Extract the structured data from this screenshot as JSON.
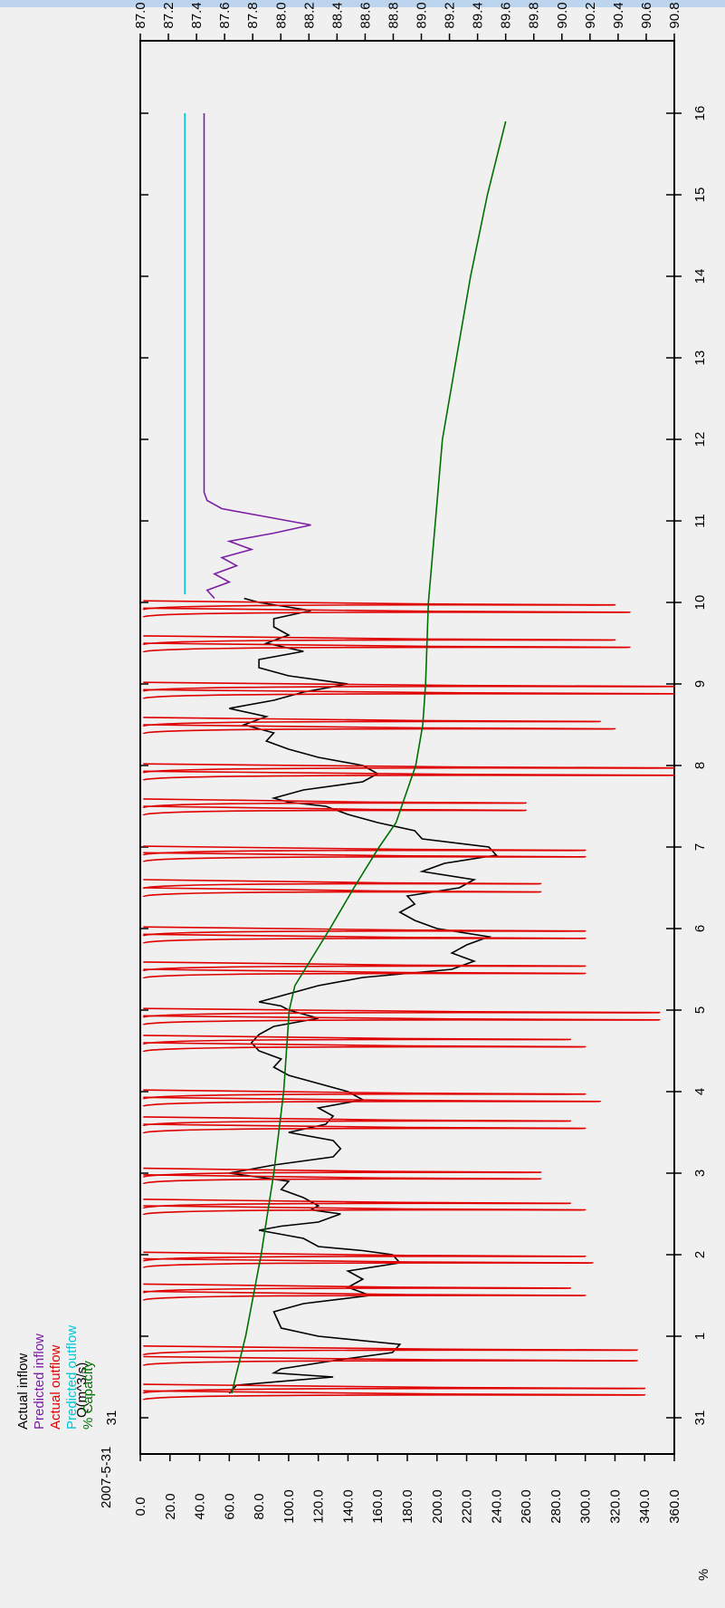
{
  "chart_data": {
    "type": "line",
    "title": "",
    "date_label": "2007-5-31",
    "left_axis": {
      "label": "Q(m^3/s)",
      "min": 0,
      "max": 360,
      "ticks": [
        "0.0",
        "20.0",
        "40.0",
        "60.0",
        "80.0",
        "100.0",
        "120.0",
        "140.0",
        "160.0",
        "180.0",
        "200.0",
        "220.0",
        "240.0",
        "260.0",
        "280.0",
        "300.0",
        "320.0",
        "340.0",
        "360.0"
      ]
    },
    "right_axis": {
      "label": "%",
      "min": 87.0,
      "max": 90.8,
      "ticks": [
        "87.0",
        "87.2",
        "87.4",
        "87.6",
        "87.8",
        "88.0",
        "88.2",
        "88.4",
        "88.6",
        "88.8",
        "89.0",
        "89.2",
        "89.4",
        "89.6",
        "89.8",
        "90.0",
        "90.2",
        "90.4",
        "90.6",
        "90.8"
      ]
    },
    "x_axis": {
      "min": 0,
      "max": 17,
      "tick_values": [
        0,
        1,
        2,
        3,
        4,
        5,
        6,
        7,
        8,
        9,
        10,
        11,
        12,
        13,
        14,
        15,
        16
      ],
      "tick_labels": [
        "31",
        "1",
        "2",
        "3",
        "4",
        "5",
        "6",
        "7",
        "8",
        "9",
        "10",
        "11",
        "12",
        "13",
        "14",
        "15",
        "16"
      ]
    },
    "legend_placement": "top-left",
    "series": [
      {
        "name": "Actual inflow",
        "color": "#000000",
        "axis": "left",
        "points": [
          [
            0.3,
            60
          ],
          [
            0.4,
            65
          ],
          [
            0.5,
            130
          ],
          [
            0.55,
            90
          ],
          [
            0.6,
            95
          ],
          [
            0.7,
            130
          ],
          [
            0.8,
            170
          ],
          [
            0.9,
            175
          ],
          [
            1.0,
            120
          ],
          [
            1.1,
            95
          ],
          [
            1.3,
            90
          ],
          [
            1.4,
            110
          ],
          [
            1.5,
            155
          ],
          [
            1.6,
            140
          ],
          [
            1.7,
            150
          ],
          [
            1.8,
            140
          ],
          [
            1.9,
            175
          ],
          [
            2.0,
            170
          ],
          [
            2.05,
            150
          ],
          [
            2.1,
            120
          ],
          [
            2.2,
            110
          ],
          [
            2.25,
            95
          ],
          [
            2.3,
            80
          ],
          [
            2.35,
            95
          ],
          [
            2.4,
            120
          ],
          [
            2.5,
            135
          ],
          [
            2.55,
            115
          ],
          [
            2.6,
            120
          ],
          [
            2.7,
            110
          ],
          [
            2.8,
            95
          ],
          [
            2.9,
            100
          ],
          [
            3.0,
            60
          ],
          [
            3.05,
            75
          ],
          [
            3.1,
            90
          ],
          [
            3.2,
            130
          ],
          [
            3.3,
            135
          ],
          [
            3.4,
            130
          ],
          [
            3.5,
            100
          ],
          [
            3.6,
            125
          ],
          [
            3.7,
            130
          ],
          [
            3.8,
            120
          ],
          [
            3.9,
            150
          ],
          [
            4.0,
            140
          ],
          [
            4.1,
            120
          ],
          [
            4.2,
            100
          ],
          [
            4.3,
            90
          ],
          [
            4.4,
            95
          ],
          [
            4.5,
            80
          ],
          [
            4.6,
            75
          ],
          [
            4.7,
            80
          ],
          [
            4.8,
            90
          ],
          [
            4.9,
            120
          ],
          [
            5.0,
            100
          ],
          [
            5.05,
            95
          ],
          [
            5.1,
            80
          ],
          [
            5.2,
            100
          ],
          [
            5.3,
            120
          ],
          [
            5.4,
            150
          ],
          [
            5.5,
            210
          ],
          [
            5.6,
            225
          ],
          [
            5.7,
            210
          ],
          [
            5.8,
            220
          ],
          [
            5.9,
            235
          ],
          [
            6.0,
            200
          ],
          [
            6.1,
            185
          ],
          [
            6.2,
            175
          ],
          [
            6.3,
            185
          ],
          [
            6.4,
            180
          ],
          [
            6.5,
            215
          ],
          [
            6.6,
            225
          ],
          [
            6.7,
            190
          ],
          [
            6.8,
            205
          ],
          [
            6.9,
            240
          ],
          [
            7.0,
            235
          ],
          [
            7.1,
            190
          ],
          [
            7.2,
            185
          ],
          [
            7.3,
            160
          ],
          [
            7.4,
            140
          ],
          [
            7.5,
            125
          ],
          [
            7.55,
            100
          ],
          [
            7.6,
            90
          ],
          [
            7.7,
            110
          ],
          [
            7.8,
            150
          ],
          [
            7.9,
            160
          ],
          [
            8.0,
            150
          ],
          [
            8.1,
            120
          ],
          [
            8.2,
            100
          ],
          [
            8.3,
            85
          ],
          [
            8.4,
            90
          ],
          [
            8.5,
            70
          ],
          [
            8.6,
            85
          ],
          [
            8.7,
            60
          ],
          [
            8.8,
            90
          ],
          [
            8.9,
            110
          ],
          [
            9.0,
            140
          ],
          [
            9.1,
            100
          ],
          [
            9.2,
            80
          ],
          [
            9.3,
            80
          ],
          [
            9.4,
            110
          ],
          [
            9.5,
            85
          ],
          [
            9.6,
            100
          ],
          [
            9.7,
            90
          ],
          [
            9.8,
            90
          ],
          [
            9.9,
            115
          ],
          [
            10.0,
            80
          ],
          [
            10.05,
            70
          ]
        ]
      },
      {
        "name": "Predicted inflow",
        "color": "#7b1fa2",
        "axis": "left",
        "points": [
          [
            10.05,
            50
          ],
          [
            10.15,
            45
          ],
          [
            10.25,
            60
          ],
          [
            10.35,
            50
          ],
          [
            10.45,
            65
          ],
          [
            10.55,
            55
          ],
          [
            10.65,
            75
          ],
          [
            10.75,
            60
          ],
          [
            10.85,
            90
          ],
          [
            10.95,
            115
          ],
          [
            11.05,
            85
          ],
          [
            11.15,
            55
          ],
          [
            11.25,
            45
          ],
          [
            11.35,
            43
          ],
          [
            16.0,
            43
          ]
        ]
      },
      {
        "name": "Actual outflow",
        "color": "#e00000",
        "axis": "left",
        "spikes": [
          [
            0.28,
            340
          ],
          [
            0.36,
            340
          ],
          [
            0.7,
            335
          ],
          [
            0.83,
            335
          ],
          [
            1.5,
            300
          ],
          [
            1.59,
            290
          ],
          [
            1.9,
            305
          ],
          [
            1.98,
            300
          ],
          [
            2.55,
            300
          ],
          [
            2.63,
            290
          ],
          [
            2.93,
            270
          ],
          [
            3.01,
            270
          ],
          [
            3.55,
            300
          ],
          [
            3.64,
            290
          ],
          [
            3.88,
            310
          ],
          [
            3.97,
            300
          ],
          [
            4.55,
            300
          ],
          [
            4.64,
            290
          ],
          [
            4.88,
            350
          ],
          [
            4.97,
            350
          ],
          [
            5.45,
            300
          ],
          [
            5.54,
            300
          ],
          [
            5.88,
            300
          ],
          [
            5.97,
            300
          ],
          [
            6.45,
            270
          ],
          [
            6.55,
            270
          ],
          [
            6.88,
            300
          ],
          [
            6.96,
            300
          ],
          [
            7.45,
            260
          ],
          [
            7.54,
            260
          ],
          [
            7.88,
            360
          ],
          [
            7.97,
            360
          ],
          [
            8.45,
            320
          ],
          [
            8.54,
            310
          ],
          [
            8.88,
            360
          ],
          [
            8.97,
            360
          ],
          [
            9.45,
            330
          ],
          [
            9.54,
            320
          ],
          [
            9.88,
            330
          ],
          [
            9.97,
            320
          ]
        ]
      },
      {
        "name": "Predicted outflow",
        "color": "#00c8d8",
        "axis": "left",
        "points": [
          [
            10.1,
            30
          ],
          [
            16.0,
            30
          ]
        ]
      },
      {
        "name": "% Capacity",
        "color": "#007000",
        "axis": "right",
        "points": [
          [
            0.3,
            87.65
          ],
          [
            1.0,
            87.75
          ],
          [
            2.0,
            87.86
          ],
          [
            3.0,
            87.95
          ],
          [
            4.0,
            88.02
          ],
          [
            5.0,
            88.06
          ],
          [
            5.3,
            88.1
          ],
          [
            6.0,
            88.35
          ],
          [
            6.5,
            88.52
          ],
          [
            7.0,
            88.7
          ],
          [
            7.3,
            88.82
          ],
          [
            7.6,
            88.88
          ],
          [
            8.0,
            88.96
          ],
          [
            8.5,
            89.01
          ],
          [
            9.0,
            89.03
          ],
          [
            10.0,
            89.05
          ],
          [
            11.0,
            89.1
          ],
          [
            12.0,
            89.15
          ],
          [
            13.0,
            89.25
          ],
          [
            14.0,
            89.35
          ],
          [
            15.0,
            89.47
          ],
          [
            15.9,
            89.6
          ]
        ]
      }
    ]
  }
}
